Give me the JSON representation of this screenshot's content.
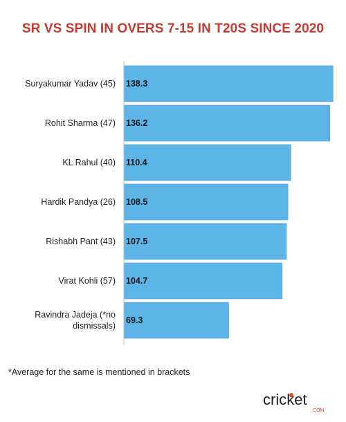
{
  "chart_data": {
    "type": "bar",
    "orientation": "horizontal",
    "title": "SR VS SPIN IN OVERS 7-15 IN T20S SINCE 2020",
    "categories": [
      "Suryakumar Yadav (45)",
      "Rohit Sharma (47)",
      "KL Rahul (40)",
      "Hardik Pandya (26)",
      "Rishabh Pant (43)",
      "Virat Kohli (57)",
      "Ravindra Jadeja (*no dismissals)"
    ],
    "values": [
      138.3,
      136.2,
      110.4,
      108.5,
      107.5,
      104.7,
      69.3
    ],
    "value_labels": [
      "138.3",
      "136.2",
      "110.4",
      "108.5",
      "107.5",
      "104.7",
      "69.3"
    ],
    "xlim": [
      0,
      140
    ],
    "grid": false,
    "legend": "none"
  },
  "footnote": "*Average for the same is mentioned in brackets",
  "logo": {
    "wordmark": "cricket",
    "sub": ".COM"
  },
  "colors": {
    "title": "#c8382e",
    "bar": "#5db4e6",
    "bar_stroke": "#4a9fd2",
    "label": "#1f1f1f",
    "axis": "#bcbcbc",
    "logo_dark": "#1f1f1f",
    "logo_accent": "#ea4b23"
  }
}
